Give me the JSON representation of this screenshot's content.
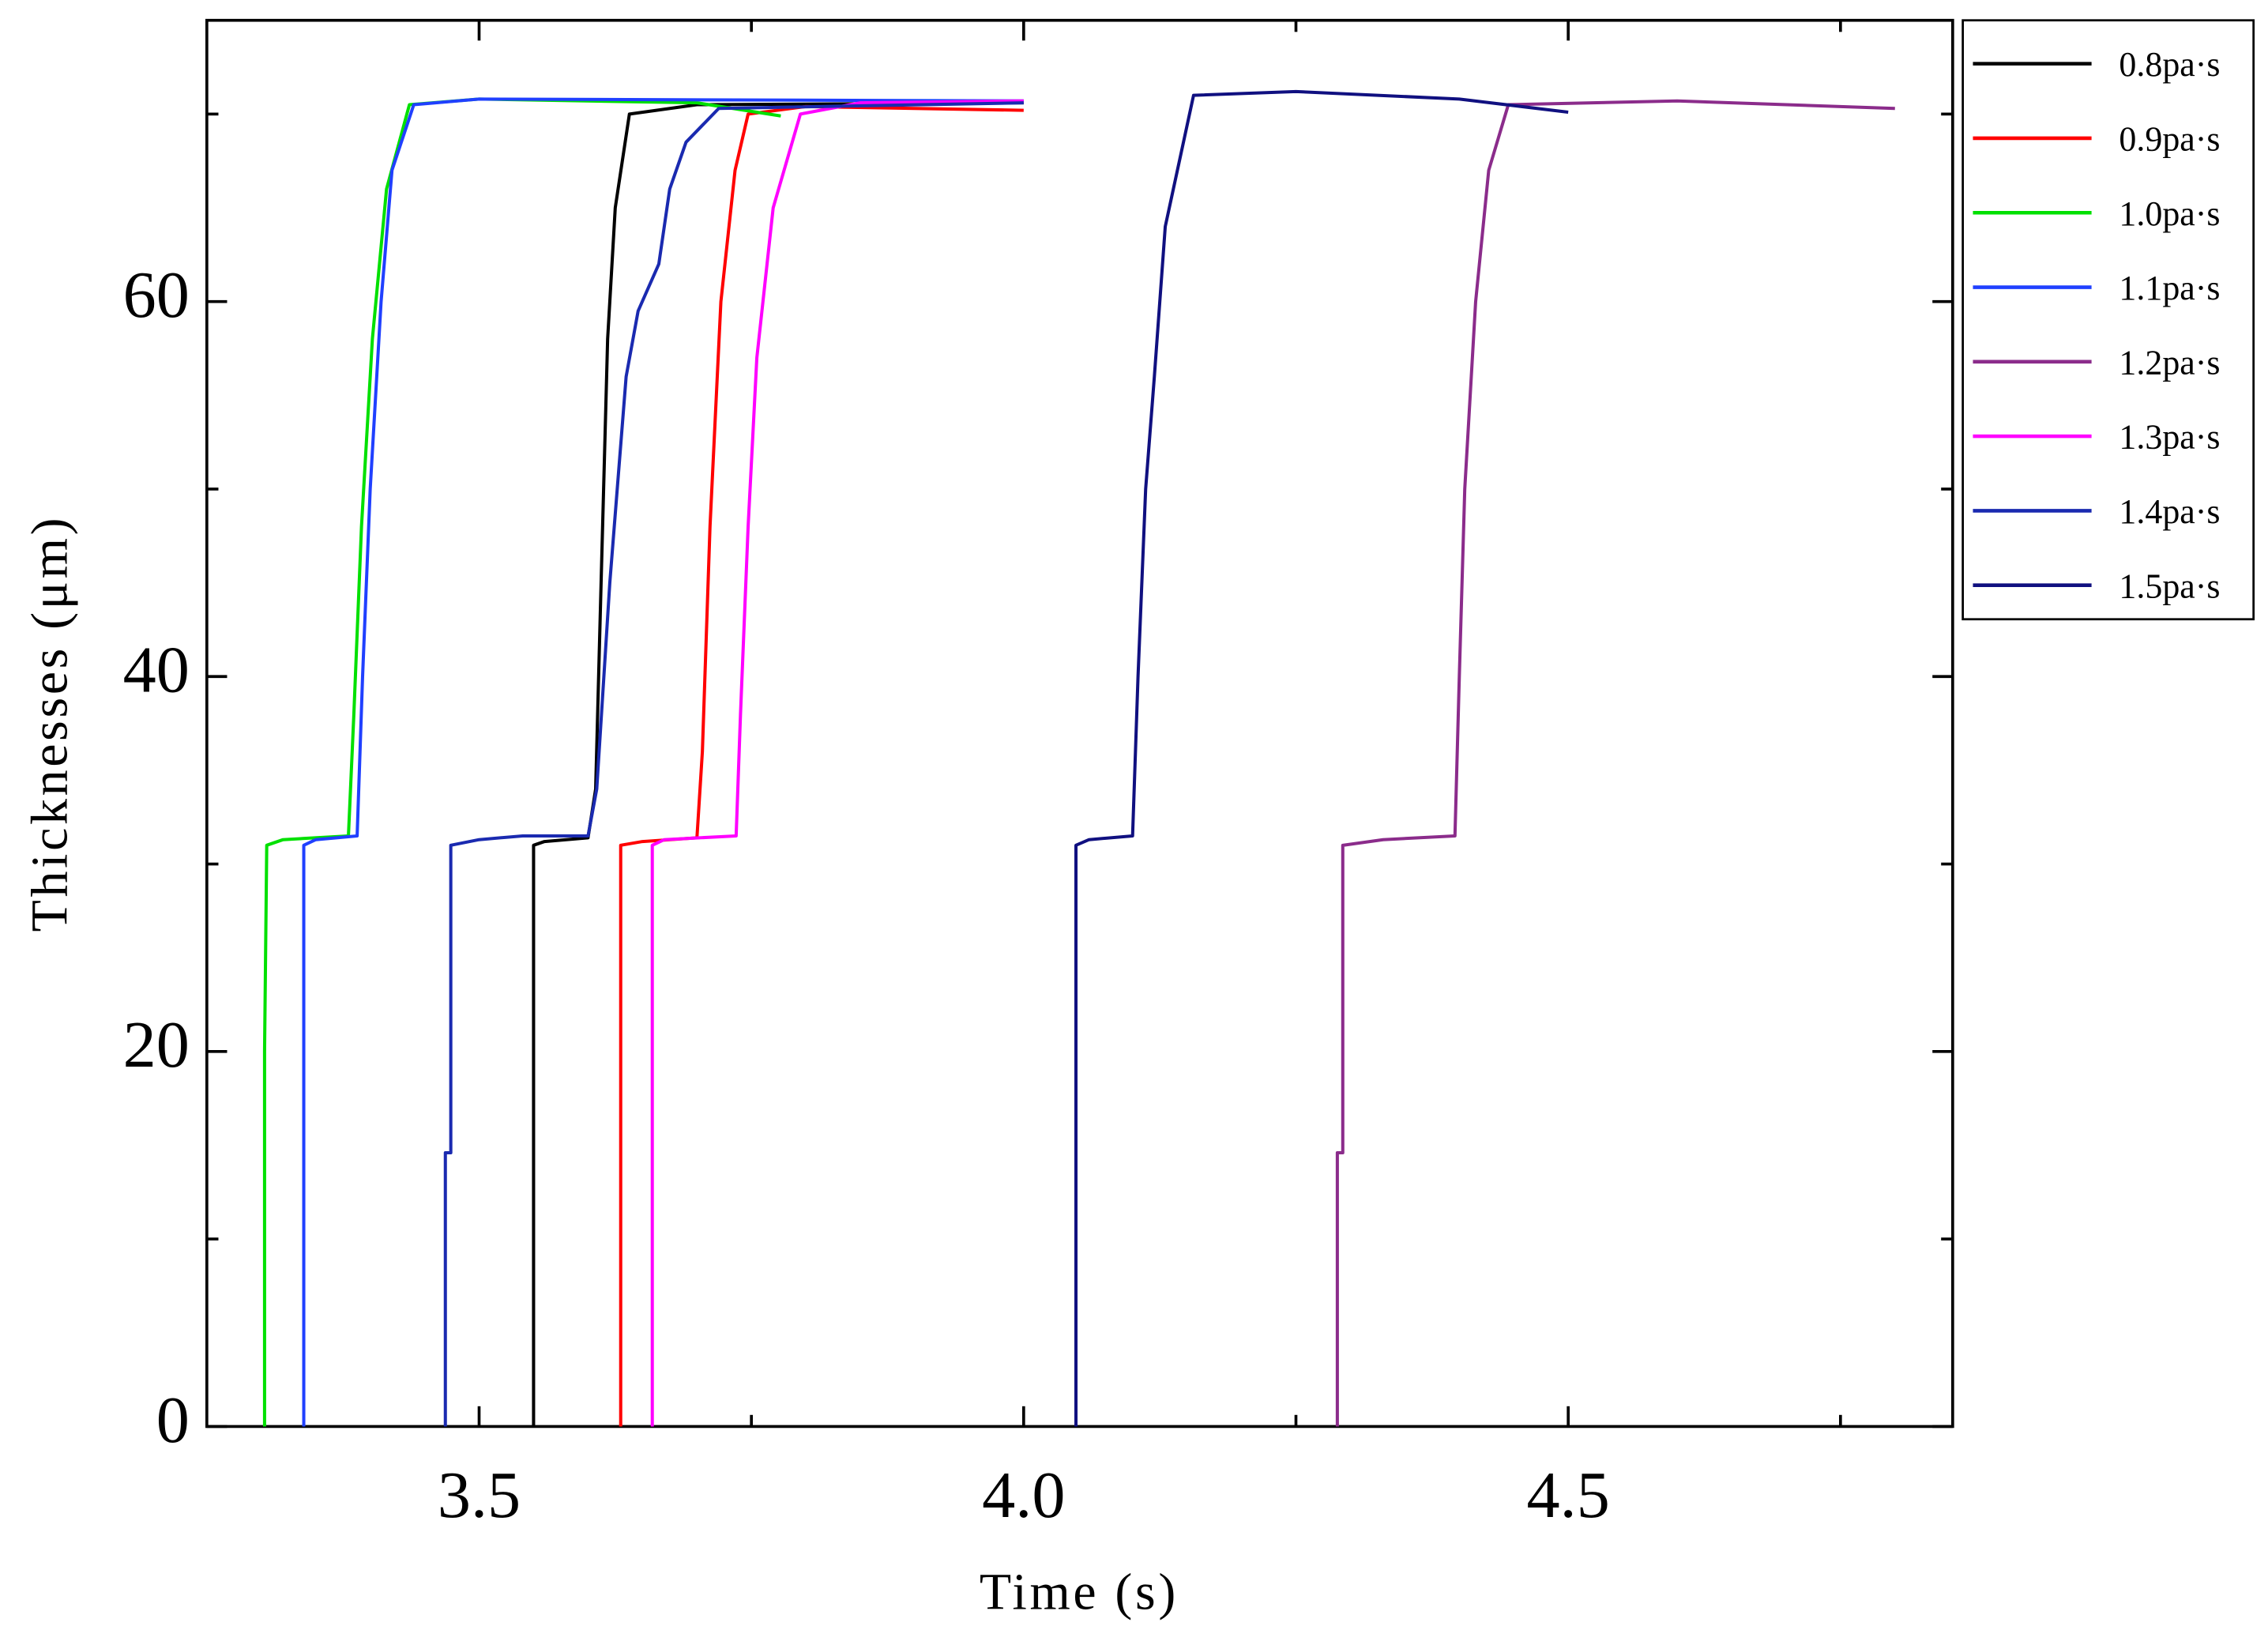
{
  "chart_data": {
    "type": "line",
    "xlabel": "Time (s)",
    "ylabel": "Thicknesses (μm)",
    "xlim": [
      3.25,
      4.853
    ],
    "ylim": [
      0,
      75
    ],
    "xticks": [
      3.5,
      {
        "value": 4,
        "label": "4.0"
      },
      4.5
    ],
    "xminorticks": [
      3.75,
      4.25,
      4.75
    ],
    "yticks": [
      0,
      20,
      40,
      60
    ],
    "yminorticks": [
      10,
      30,
      50,
      70
    ],
    "legend": "outside-top-right",
    "series": [
      {
        "name": "0.8pa·s",
        "color": "#000000",
        "x": [
          3.55,
          3.55,
          3.56,
          3.6,
          3.607,
          3.612,
          3.618,
          3.625,
          3.638,
          3.7,
          4.0
        ],
        "values": [
          0,
          31,
          31.2,
          31.4,
          34,
          45,
          58,
          65,
          70,
          70.5,
          70.6
        ]
      },
      {
        "name": "0.9pa·s",
        "color": "#ff0000",
        "x": [
          3.63,
          3.63,
          3.65,
          3.7,
          3.705,
          3.712,
          3.722,
          3.735,
          3.747,
          3.8,
          4.0
        ],
        "values": [
          0,
          31,
          31.2,
          31.4,
          36,
          48,
          60,
          67,
          70,
          70.4,
          70.2
        ]
      },
      {
        "name": "1.0pa·s",
        "color": "#00e000",
        "x": [
          3.303,
          3.303,
          3.305,
          3.32,
          3.38,
          3.385,
          3.392,
          3.402,
          3.415,
          3.436,
          3.5,
          3.7,
          3.777
        ],
        "values": [
          0,
          20,
          31,
          31.3,
          31.5,
          38,
          48,
          58,
          66,
          70.5,
          70.8,
          70.6,
          69.9
        ]
      },
      {
        "name": "1.1pa·s",
        "color": "#2040ff",
        "x": [
          3.339,
          3.339,
          3.35,
          3.388,
          3.393,
          3.4,
          3.41,
          3.42,
          3.44,
          3.5,
          4.0
        ],
        "values": [
          0,
          31,
          31.3,
          31.5,
          40,
          50,
          60,
          67,
          70.5,
          70.8,
          70.7
        ]
      },
      {
        "name": "1.2pa·s",
        "color": "#8b2c8b",
        "x": [
          4.288,
          4.288,
          4.293,
          4.293,
          4.33,
          4.396,
          4.4,
          4.405,
          4.415,
          4.427,
          4.445,
          4.6,
          4.8
        ],
        "values": [
          0,
          14.6,
          14.6,
          31,
          31.3,
          31.5,
          40,
          50,
          60,
          67,
          70.5,
          70.7,
          70.3
        ]
      },
      {
        "name": "1.3pa·s",
        "color": "#ff00ff",
        "x": [
          3.659,
          3.659,
          3.67,
          3.736,
          3.74,
          3.747,
          3.755,
          3.77,
          3.795,
          3.85,
          4.0
        ],
        "values": [
          0,
          31,
          31.3,
          31.5,
          38,
          48,
          57,
          65,
          70,
          70.6,
          70.7
        ]
      },
      {
        "name": "1.4pa·s",
        "color": "#1a2ab0",
        "x": [
          3.469,
          3.469,
          3.474,
          3.474,
          3.5,
          3.54,
          3.6,
          3.608,
          3.62,
          3.635,
          3.646,
          3.665,
          3.675,
          3.69,
          3.72,
          4.0
        ],
        "values": [
          0,
          14.6,
          14.6,
          31,
          31.3,
          31.5,
          31.5,
          34,
          45,
          56,
          59.5,
          62,
          66,
          68.5,
          70.3,
          70.6
        ]
      },
      {
        "name": "1.5pa·s",
        "color": "#101080",
        "x": [
          4.048,
          4.048,
          4.06,
          4.1,
          4.105,
          4.112,
          4.12,
          4.13,
          4.156,
          4.25,
          4.4,
          4.5
        ],
        "values": [
          0,
          31,
          31.3,
          31.5,
          40,
          50,
          56,
          64,
          71,
          71.2,
          70.8,
          70.1
        ]
      }
    ]
  }
}
